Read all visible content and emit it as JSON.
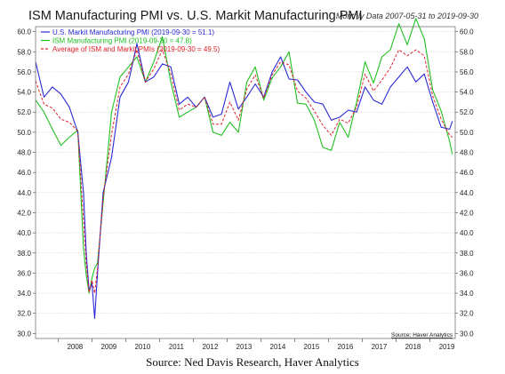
{
  "title": "ISM Manufacturing PMI vs. U.S. Markit Manufacturing PMI",
  "subtitle": "Monthly Data 2007-05-31 to 2019-09-30",
  "source_caption": "Source: Ned Davis Research, Haver Analytics",
  "watermark": "Source: Haver Analytics",
  "colors": {
    "markit": "#2b2bd6",
    "ism": "#22c022",
    "average": "#e0202a",
    "grid": "#c8c8c8"
  },
  "chart_data": {
    "type": "line",
    "x": [
      "2007-05",
      "2007-08",
      "2007-11",
      "2008-02",
      "2008-05",
      "2008-08",
      "2008-10",
      "2008-11",
      "2008-12",
      "2009-01",
      "2009-02",
      "2009-03",
      "2009-05",
      "2009-08",
      "2009-11",
      "2010-02",
      "2010-05",
      "2010-08",
      "2010-11",
      "2011-02",
      "2011-05",
      "2011-08",
      "2011-11",
      "2012-02",
      "2012-05",
      "2012-08",
      "2012-11",
      "2013-02",
      "2013-05",
      "2013-08",
      "2013-11",
      "2014-02",
      "2014-05",
      "2014-08",
      "2014-11",
      "2015-02",
      "2015-05",
      "2015-08",
      "2015-11",
      "2016-02",
      "2016-05",
      "2016-08",
      "2016-11",
      "2017-02",
      "2017-05",
      "2017-08",
      "2017-11",
      "2018-02",
      "2018-05",
      "2018-08",
      "2018-11",
      "2019-02",
      "2019-05",
      "2019-08",
      "2019-09"
    ],
    "series": [
      {
        "name": "U.S. Markit Manufacturing PMI (2019-09-30 = 51.1)",
        "key": "markit",
        "values": [
          57.0,
          53.5,
          54.5,
          53.8,
          52.5,
          50.0,
          44.0,
          38.0,
          34.2,
          35.0,
          31.5,
          36.0,
          44.0,
          47.5,
          53.5,
          55.0,
          58.8,
          55.0,
          55.5,
          56.8,
          56.5,
          52.8,
          53.5,
          52.5,
          53.5,
          51.5,
          51.8,
          55.0,
          52.3,
          53.5,
          54.8,
          53.5,
          56.0,
          57.5,
          55.3,
          55.2,
          54.0,
          53.0,
          52.8,
          51.2,
          51.5,
          52.2,
          52.0,
          54.5,
          53.2,
          52.8,
          54.5,
          55.5,
          56.5,
          55.0,
          55.8,
          53.0,
          50.5,
          50.3,
          51.1
        ]
      },
      {
        "name": "ISM Manufacturing PMI (2019-09-30 = 47.8)",
        "key": "ism",
        "values": [
          53.2,
          52.0,
          50.3,
          48.7,
          49.5,
          50.2,
          38.5,
          35.8,
          34.0,
          35.5,
          36.5,
          37.0,
          43.0,
          52.0,
          55.5,
          56.5,
          57.5,
          55.0,
          57.0,
          59.5,
          55.0,
          51.5,
          52.0,
          52.5,
          53.5,
          50.0,
          49.7,
          51.0,
          50.0,
          55.0,
          56.5,
          53.2,
          55.4,
          56.5,
          58.0,
          52.9,
          52.8,
          51.2,
          48.5,
          48.2,
          51.0,
          49.5,
          53.0,
          57.0,
          54.9,
          57.5,
          58.2,
          60.8,
          58.7,
          61.3,
          59.3,
          54.2,
          52.1,
          49.1,
          47.8
        ]
      },
      {
        "name": "Average of ISM and Markit PMIs (2019-09-30 = 49.5)",
        "key": "average",
        "values": [
          55.1,
          52.8,
          52.4,
          51.3,
          51.0,
          50.1,
          41.3,
          36.9,
          34.1,
          35.3,
          34.0,
          36.5,
          43.5,
          49.8,
          54.5,
          55.8,
          58.2,
          55.0,
          56.3,
          58.2,
          55.8,
          52.2,
          52.8,
          52.5,
          53.5,
          50.8,
          50.8,
          53.0,
          51.2,
          54.3,
          55.7,
          53.4,
          55.7,
          57.0,
          56.7,
          54.1,
          53.4,
          52.1,
          50.7,
          49.7,
          51.3,
          50.9,
          52.5,
          55.8,
          54.1,
          55.2,
          56.4,
          58.2,
          57.6,
          58.2,
          57.6,
          53.6,
          51.3,
          49.7,
          49.5
        ]
      }
    ],
    "xticks": [
      "2008",
      "2009",
      "2010",
      "2011",
      "2012",
      "2013",
      "2014",
      "2015",
      "2016",
      "2017",
      "2018",
      "2019"
    ],
    "xlim": [
      "2007-05",
      "2019-10"
    ],
    "ylim": [
      29.5,
      60.5
    ],
    "yticks": [
      "30.0",
      "32.0",
      "34.0",
      "36.0",
      "38.0",
      "40.0",
      "42.0",
      "44.0",
      "46.0",
      "48.0",
      "50.0",
      "52.0",
      "54.0",
      "56.0",
      "58.0",
      "60.0"
    ],
    "grid": "horizontal",
    "legend_position": "top-left",
    "right_axis": true
  }
}
